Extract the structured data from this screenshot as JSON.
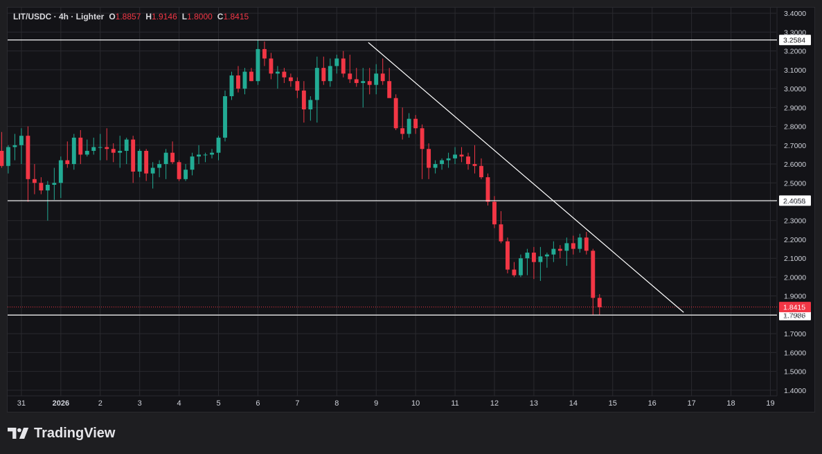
{
  "legend": {
    "symbol": "LIT/USDC",
    "interval": "4h",
    "exchange": "Lighter",
    "title_line": "LIT/USDC · 4h · Lighter",
    "open_key": "O",
    "open": "1.8857",
    "high_key": "H",
    "high": "1.9146",
    "low_key": "L",
    "low": "1.8000",
    "close_key": "C",
    "close": "1.8415"
  },
  "brand": {
    "name": "TradingView"
  },
  "colors": {
    "up": "#22ab94",
    "down": "#f23645",
    "background": "#131317",
    "grid": "#2a2a2f",
    "line": "#ffffff",
    "axis_text": "#d1d4dc"
  },
  "chart_data": {
    "type": "candlestick",
    "title": "LIT/USDC · 4h · Lighter",
    "ylim": [
      1.37,
      3.43
    ],
    "xlim": [
      -0.35,
      19.15
    ],
    "y_ticks": [
      1.4,
      1.5,
      1.6,
      1.7,
      1.8,
      1.9,
      2.0,
      2.1,
      2.2,
      2.3,
      2.4,
      2.5,
      2.6,
      2.7,
      2.8,
      2.9,
      3.0,
      3.1,
      3.2,
      3.3,
      3.4
    ],
    "y_tick_labels": [
      "1.4000",
      "1.5000",
      "1.6000",
      "1.7000",
      "1.8000",
      "1.9000",
      "2.0000",
      "2.1000",
      "2.2000",
      "2.3000",
      "2.4000",
      "2.5000",
      "2.6000",
      "2.7000",
      "2.8000",
      "2.9000",
      "3.0000",
      "3.1000",
      "3.2000",
      "3.3000",
      "3.4000"
    ],
    "x_ticks": [
      {
        "day": 0,
        "label": "31"
      },
      {
        "day": 1,
        "label": "2026"
      },
      {
        "day": 2,
        "label": "2"
      },
      {
        "day": 3,
        "label": "3"
      },
      {
        "day": 4,
        "label": "4"
      },
      {
        "day": 5,
        "label": "5"
      },
      {
        "day": 6,
        "label": "6"
      },
      {
        "day": 7,
        "label": "7"
      },
      {
        "day": 8,
        "label": "8"
      },
      {
        "day": 9,
        "label": "9"
      },
      {
        "day": 10,
        "label": "10"
      },
      {
        "day": 11,
        "label": "11"
      },
      {
        "day": 12,
        "label": "12"
      },
      {
        "day": 13,
        "label": "13"
      },
      {
        "day": 14,
        "label": "14"
      },
      {
        "day": 15,
        "label": "15"
      },
      {
        "day": 16,
        "label": "16"
      },
      {
        "day": 17,
        "label": "17"
      },
      {
        "day": 18,
        "label": "18"
      },
      {
        "day": 19,
        "label": "19"
      }
    ],
    "candles_start_day": -0.667,
    "candles_per_day": 6,
    "candles": [
      [
        2.72,
        2.88,
        2.62,
        2.67
      ],
      [
        2.67,
        2.77,
        2.58,
        2.59
      ],
      [
        2.59,
        2.7,
        2.55,
        2.69
      ],
      [
        2.69,
        2.76,
        2.62,
        2.7
      ],
      [
        2.7,
        2.79,
        2.6,
        2.75
      ],
      [
        2.75,
        2.8,
        2.4,
        2.52
      ],
      [
        2.52,
        2.6,
        2.44,
        2.5
      ],
      [
        2.5,
        2.53,
        2.44,
        2.46
      ],
      [
        2.46,
        2.51,
        2.3,
        2.49
      ],
      [
        2.49,
        2.58,
        2.41,
        2.5
      ],
      [
        2.5,
        2.64,
        2.42,
        2.62
      ],
      [
        2.62,
        2.72,
        2.58,
        2.6
      ],
      [
        2.6,
        2.76,
        2.57,
        2.74
      ],
      [
        2.74,
        2.78,
        2.6,
        2.65
      ],
      [
        2.65,
        2.73,
        2.64,
        2.67
      ],
      [
        2.67,
        2.74,
        2.65,
        2.69
      ],
      [
        2.69,
        2.76,
        2.62,
        2.69
      ],
      [
        2.69,
        2.79,
        2.62,
        2.68
      ],
      [
        2.68,
        2.71,
        2.61,
        2.66
      ],
      [
        2.66,
        2.75,
        2.58,
        2.67
      ],
      [
        2.67,
        2.74,
        2.6,
        2.73
      ],
      [
        2.73,
        2.75,
        2.5,
        2.56
      ],
      [
        2.56,
        2.68,
        2.53,
        2.67
      ],
      [
        2.67,
        2.68,
        2.51,
        2.55
      ],
      [
        2.55,
        2.61,
        2.47,
        2.58
      ],
      [
        2.58,
        2.62,
        2.53,
        2.6
      ],
      [
        2.6,
        2.68,
        2.52,
        2.66
      ],
      [
        2.66,
        2.72,
        2.6,
        2.61
      ],
      [
        2.61,
        2.62,
        2.51,
        2.52
      ],
      [
        2.52,
        2.6,
        2.51,
        2.57
      ],
      [
        2.57,
        2.66,
        2.54,
        2.64
      ],
      [
        2.64,
        2.7,
        2.6,
        2.65
      ],
      [
        2.65,
        2.66,
        2.61,
        2.65
      ],
      [
        2.65,
        2.68,
        2.63,
        2.66
      ],
      [
        2.66,
        2.75,
        2.62,
        2.74
      ],
      [
        2.74,
        2.99,
        2.72,
        2.96
      ],
      [
        2.96,
        3.09,
        2.94,
        3.07
      ],
      [
        3.07,
        3.12,
        2.98,
        3.0
      ],
      [
        3.0,
        3.11,
        2.97,
        3.09
      ],
      [
        3.09,
        3.11,
        3.04,
        3.04
      ],
      [
        3.04,
        3.26,
        3.02,
        3.21
      ],
      [
        3.21,
        3.25,
        3.12,
        3.16
      ],
      [
        3.16,
        3.19,
        3.05,
        3.08
      ],
      [
        3.08,
        3.12,
        3.0,
        3.09
      ],
      [
        3.09,
        3.11,
        3.03,
        3.06
      ],
      [
        3.06,
        3.08,
        3.01,
        3.04
      ],
      [
        3.04,
        3.06,
        2.95,
        2.99
      ],
      [
        2.99,
        3.04,
        2.82,
        2.89
      ],
      [
        2.89,
        2.96,
        2.83,
        2.94
      ],
      [
        2.94,
        3.17,
        2.82,
        3.11
      ],
      [
        3.11,
        3.17,
        3.02,
        3.04
      ],
      [
        3.04,
        3.16,
        3.01,
        3.12
      ],
      [
        3.12,
        3.18,
        3.08,
        3.16
      ],
      [
        3.16,
        3.2,
        3.06,
        3.08
      ],
      [
        3.08,
        3.18,
        3.03,
        3.05
      ],
      [
        3.05,
        3.11,
        3.01,
        3.03
      ],
      [
        3.03,
        3.11,
        2.9,
        3.04
      ],
      [
        3.04,
        3.11,
        2.97,
        3.02
      ],
      [
        3.02,
        3.13,
        2.97,
        3.08
      ],
      [
        3.08,
        3.16,
        3.02,
        3.04
      ],
      [
        3.04,
        3.11,
        2.96,
        2.95
      ],
      [
        2.95,
        2.97,
        2.78,
        2.79
      ],
      [
        2.79,
        2.9,
        2.73,
        2.76
      ],
      [
        2.76,
        2.87,
        2.74,
        2.84
      ],
      [
        2.84,
        2.86,
        2.76,
        2.79
      ],
      [
        2.79,
        2.81,
        2.52,
        2.68
      ],
      [
        2.68,
        2.71,
        2.52,
        2.58
      ],
      [
        2.58,
        2.62,
        2.55,
        2.6
      ],
      [
        2.6,
        2.63,
        2.57,
        2.62
      ],
      [
        2.62,
        2.66,
        2.58,
        2.63
      ],
      [
        2.63,
        2.69,
        2.6,
        2.65
      ],
      [
        2.65,
        2.69,
        2.61,
        2.64
      ],
      [
        2.64,
        2.66,
        2.57,
        2.6
      ],
      [
        2.6,
        2.7,
        2.55,
        2.59
      ],
      [
        2.59,
        2.63,
        2.52,
        2.53
      ],
      [
        2.53,
        2.55,
        2.38,
        2.4
      ],
      [
        2.4,
        2.43,
        2.26,
        2.28
      ],
      [
        2.28,
        2.35,
        2.18,
        2.19
      ],
      [
        2.19,
        2.21,
        2.02,
        2.04
      ],
      [
        2.04,
        2.08,
        2.0,
        2.01
      ],
      [
        2.01,
        2.12,
        2.0,
        2.1
      ],
      [
        2.1,
        2.15,
        2.01,
        2.13
      ],
      [
        2.13,
        2.16,
        1.99,
        2.08
      ],
      [
        2.08,
        2.16,
        1.98,
        2.11
      ],
      [
        2.11,
        2.13,
        2.05,
        2.12
      ],
      [
        2.12,
        2.19,
        2.08,
        2.15
      ],
      [
        2.15,
        2.17,
        2.1,
        2.14
      ],
      [
        2.14,
        2.21,
        2.06,
        2.18
      ],
      [
        2.18,
        2.22,
        2.12,
        2.15
      ],
      [
        2.15,
        2.23,
        2.13,
        2.21
      ],
      [
        2.21,
        2.24,
        2.12,
        2.14
      ],
      [
        2.14,
        2.15,
        1.8,
        1.89
      ],
      [
        1.89,
        1.91,
        1.8,
        1.84
      ]
    ],
    "price_lines": [
      {
        "value": 3.2584,
        "label": "3.2584"
      },
      {
        "value": 2.4058,
        "label": "2.4058"
      },
      {
        "value": 1.7986,
        "label": "1.7986"
      }
    ],
    "last_price": {
      "value": 1.8415,
      "label": "1.8415"
    },
    "trendline": {
      "from": {
        "day": 8.8,
        "value": 3.245
      },
      "to": {
        "day": 16.8,
        "value": 1.813
      }
    }
  }
}
